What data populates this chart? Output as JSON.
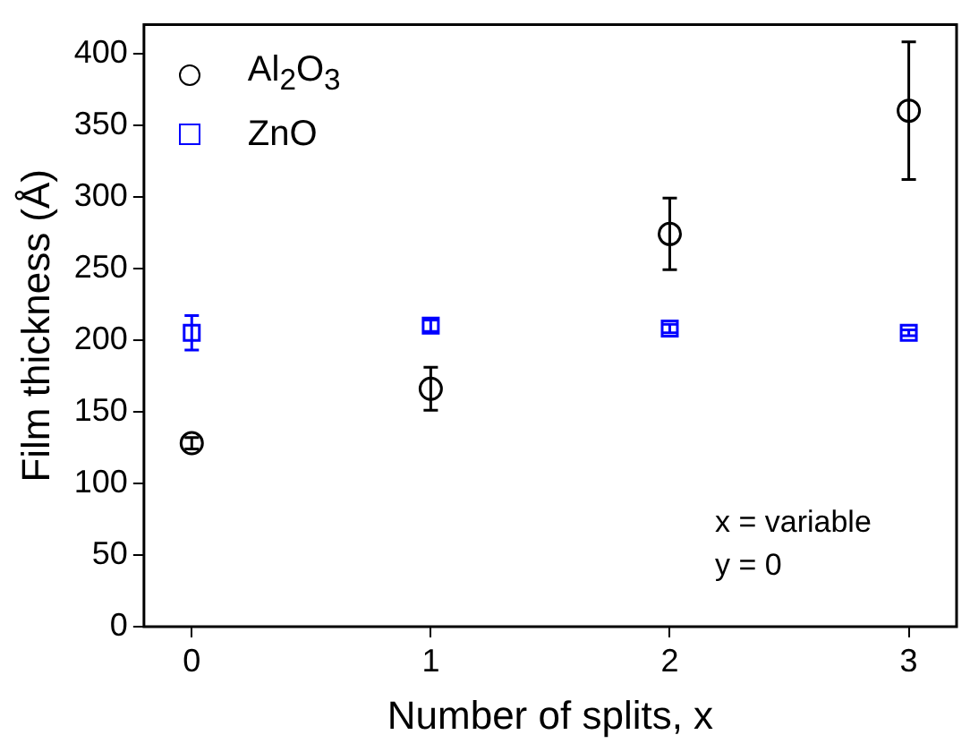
{
  "chart_data": {
    "type": "scatter",
    "xlabel": "Number of splits, x",
    "ylabel": "Film thickness (Å)",
    "x": [
      0,
      1,
      2,
      3
    ],
    "xlim": [
      -0.2,
      3.2
    ],
    "xticks": [
      0,
      1,
      2,
      3
    ],
    "ylim": [
      0,
      420
    ],
    "yticks": [
      0,
      50,
      100,
      150,
      200,
      250,
      300,
      350,
      400
    ],
    "series": [
      {
        "name": "Al$_{2}$O$_{3}$",
        "color": "#000000",
        "marker": "circle",
        "values": [
          128,
          166,
          274,
          360
        ],
        "errors": [
          4,
          15,
          25,
          48
        ]
      },
      {
        "name": "ZnO",
        "color": "#0000ff",
        "marker": "square",
        "values": [
          205,
          210,
          208,
          205
        ],
        "errors": [
          12,
          4,
          3,
          2
        ]
      }
    ],
    "legend": "top left",
    "grid": false,
    "annotations": [
      "x = variable",
      "y = 0"
    ]
  }
}
